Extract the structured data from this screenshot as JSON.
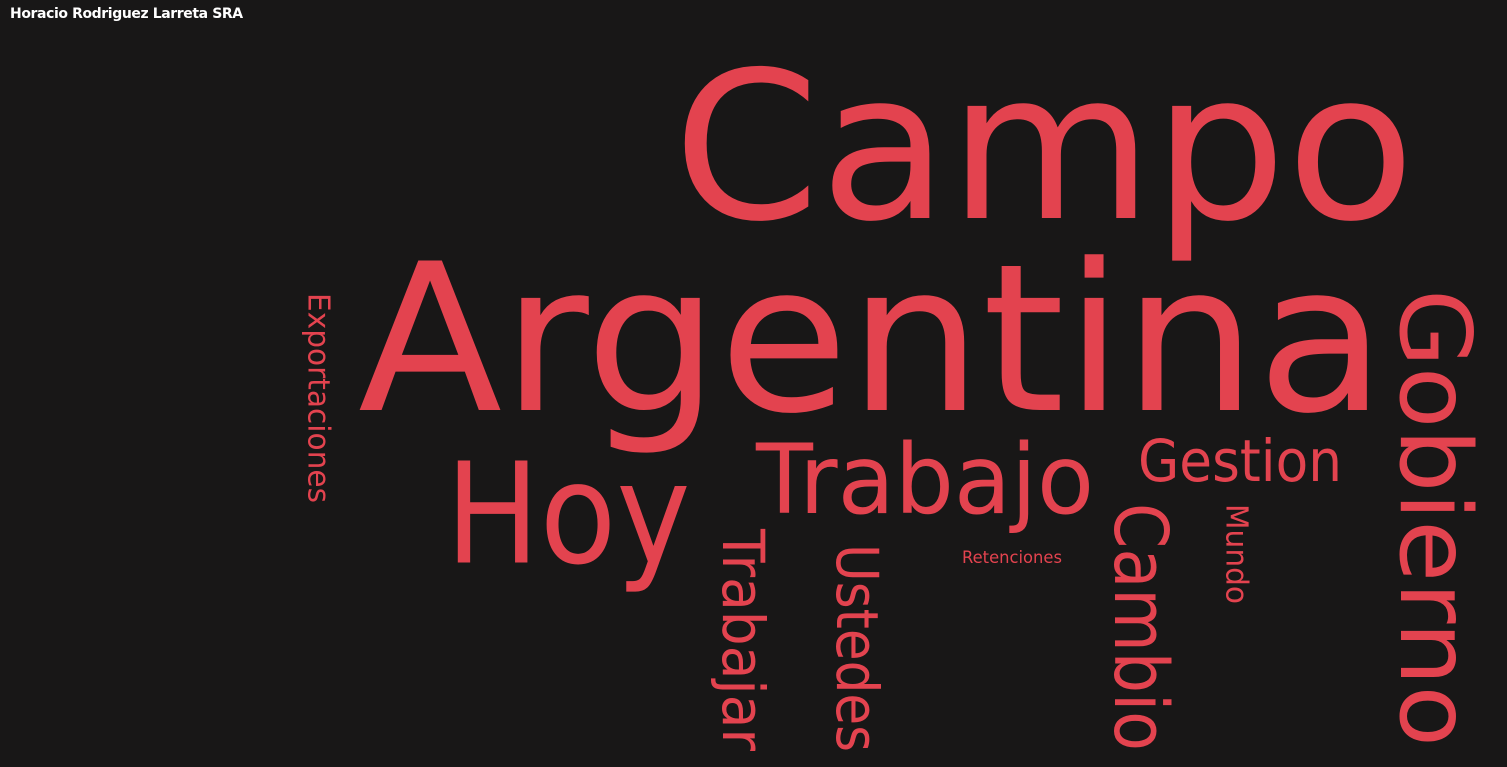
{
  "page": {
    "title": "Horacio Rodriguez Larreta SRA",
    "background_color": "#181717",
    "word_color": "#E3434F",
    "title_color": "#ffffff"
  },
  "chart_data": {
    "type": "wordcloud",
    "title": "Horacio Rodriguez Larreta SRA",
    "words": [
      {
        "text": "Argentina",
        "weight": 10,
        "orientation": "horizontal"
      },
      {
        "text": "Campo",
        "weight": 9.5,
        "orientation": "horizontal"
      },
      {
        "text": "Gobierno",
        "weight": 6,
        "orientation": "vertical"
      },
      {
        "text": "Hoy",
        "weight": 5.5,
        "orientation": "horizontal"
      },
      {
        "text": "Trabajo",
        "weight": 4.5,
        "orientation": "horizontal"
      },
      {
        "text": "Cambio",
        "weight": 3.5,
        "orientation": "vertical"
      },
      {
        "text": "Ustedes",
        "weight": 2.8,
        "orientation": "vertical"
      },
      {
        "text": "Trabajar",
        "weight": 2.8,
        "orientation": "vertical"
      },
      {
        "text": "Gestion",
        "weight": 2.8,
        "orientation": "horizontal"
      },
      {
        "text": "Exportaciones",
        "weight": 1.9,
        "orientation": "vertical"
      },
      {
        "text": "Mundo",
        "weight": 1.6,
        "orientation": "vertical"
      },
      {
        "text": "Retenciones",
        "weight": 1.1,
        "orientation": "horizontal"
      }
    ]
  }
}
